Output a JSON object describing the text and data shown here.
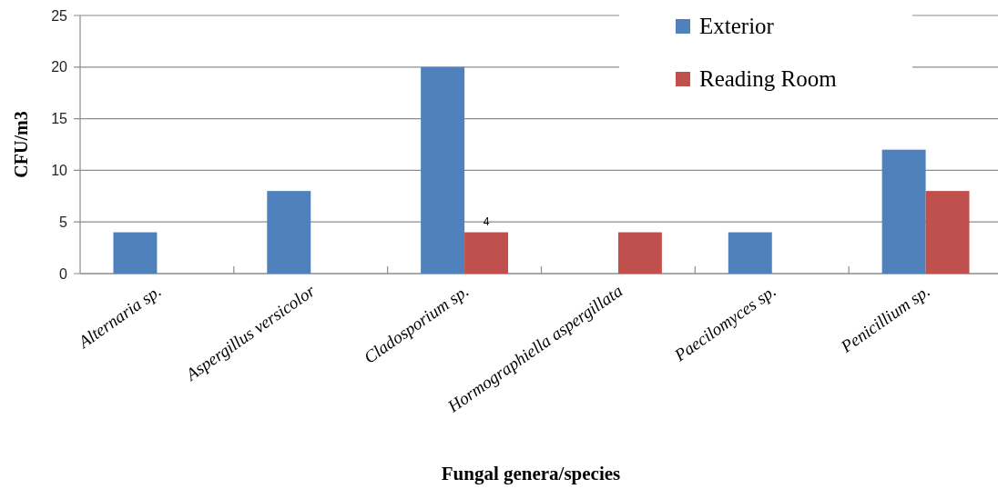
{
  "chart_data": {
    "type": "bar",
    "categories": [
      "Alternaria sp.",
      "Aspergillus versicolor",
      "Cladosporium sp.",
      "Hormographiella aspergillata",
      "Paecilomyces sp.",
      "Penicillium sp."
    ],
    "series": [
      {
        "name": "Exterior",
        "color": "#4f81bd",
        "values": [
          4,
          8,
          20,
          0,
          4,
          12
        ]
      },
      {
        "name": "Reading Room",
        "color": "#c0504d",
        "values": [
          0,
          0,
          4,
          4,
          0,
          8
        ],
        "value_labels": [
          null,
          null,
          "4",
          null,
          null,
          null
        ]
      }
    ],
    "xlabel": "Fungal genera/species",
    "ylabel": "CFU/m3",
    "ylim": [
      0,
      25
    ],
    "yticks": [
      0,
      5,
      10,
      15,
      20,
      25
    ],
    "grid": "y",
    "legend": "top right"
  }
}
